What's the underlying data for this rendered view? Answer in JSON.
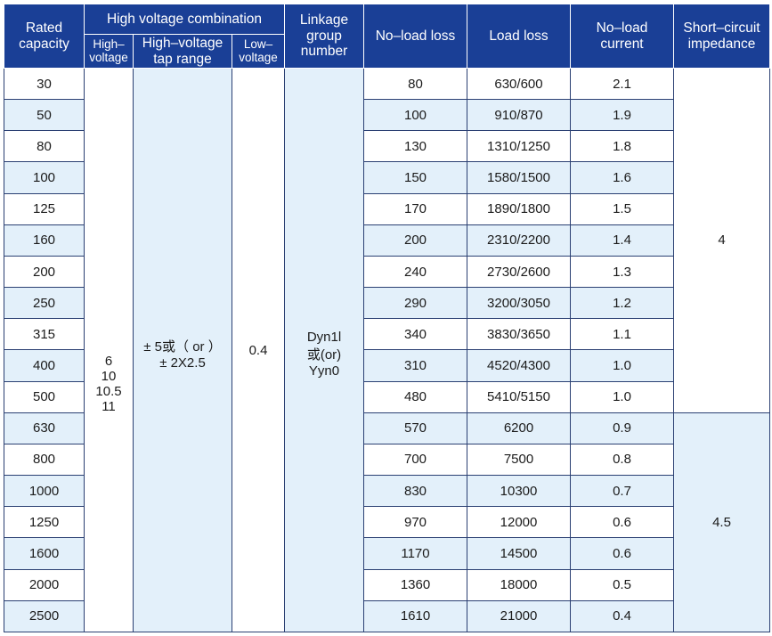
{
  "headers": {
    "rated_capacity": [
      "Rated",
      "capacity"
    ],
    "hv_combination": "High voltage combination",
    "high_voltage": [
      "High–",
      "voltage"
    ],
    "hv_tap_range": [
      "High–voltage",
      "tap range"
    ],
    "low_voltage": [
      "Low–",
      "voltage"
    ],
    "linkage_group": [
      "Linkage",
      "group",
      "number"
    ],
    "no_load_loss": "No–load loss",
    "load_loss": "Load loss",
    "no_load_current": [
      "No–load",
      "current"
    ],
    "short_circuit": [
      "Short–circuit",
      "impedance"
    ]
  },
  "merged": {
    "high_voltage_values": [
      "6",
      "10",
      "10.5",
      "11"
    ],
    "tap_range_values": [
      "± 5或（ or ）",
      "± 2X2.5"
    ],
    "low_voltage_value": "0.4",
    "linkage_values": [
      "Dyn1l",
      "或(or)",
      "Yyn0"
    ],
    "impedance_upper": "4",
    "impedance_lower": "4.5"
  },
  "rows": [
    {
      "capacity": "30",
      "no_load_loss": "80",
      "load_loss": "630/600",
      "no_load_current": "2.1"
    },
    {
      "capacity": "50",
      "no_load_loss": "100",
      "load_loss": "910/870",
      "no_load_current": "1.9"
    },
    {
      "capacity": "80",
      "no_load_loss": "130",
      "load_loss": "1310/1250",
      "no_load_current": "1.8"
    },
    {
      "capacity": "100",
      "no_load_loss": "150",
      "load_loss": "1580/1500",
      "no_load_current": "1.6"
    },
    {
      "capacity": "125",
      "no_load_loss": "170",
      "load_loss": "1890/1800",
      "no_load_current": "1.5"
    },
    {
      "capacity": "160",
      "no_load_loss": "200",
      "load_loss": "2310/2200",
      "no_load_current": "1.4"
    },
    {
      "capacity": "200",
      "no_load_loss": "240",
      "load_loss": "2730/2600",
      "no_load_current": "1.3"
    },
    {
      "capacity": "250",
      "no_load_loss": "290",
      "load_loss": "3200/3050",
      "no_load_current": "1.2"
    },
    {
      "capacity": "315",
      "no_load_loss": "340",
      "load_loss": "3830/3650",
      "no_load_current": "1.1"
    },
    {
      "capacity": "400",
      "no_load_loss": "310",
      "load_loss": "4520/4300",
      "no_load_current": "1.0"
    },
    {
      "capacity": "500",
      "no_load_loss": "480",
      "load_loss": "5410/5150",
      "no_load_current": "1.0"
    },
    {
      "capacity": "630",
      "no_load_loss": "570",
      "load_loss": "6200",
      "no_load_current": "0.9"
    },
    {
      "capacity": "800",
      "no_load_loss": "700",
      "load_loss": "7500",
      "no_load_current": "0.8"
    },
    {
      "capacity": "1000",
      "no_load_loss": "830",
      "load_loss": "10300",
      "no_load_current": "0.7"
    },
    {
      "capacity": "1250",
      "no_load_loss": "970",
      "load_loss": "12000",
      "no_load_current": "0.6"
    },
    {
      "capacity": "1600",
      "no_load_loss": "1170",
      "load_loss": "14500",
      "no_load_current": "0.6"
    },
    {
      "capacity": "2000",
      "no_load_loss": "1360",
      "load_loss": "18000",
      "no_load_current": "0.5"
    },
    {
      "capacity": "2500",
      "no_load_loss": "1610",
      "load_loss": "21000",
      "no_load_current": "0.4"
    }
  ],
  "colors": {
    "header_bg": "#1a3f96",
    "header_text": "#ffffff",
    "row_alt_bg": "#e3f0fa",
    "row_bg": "#ffffff",
    "border": "#2a3f72"
  }
}
